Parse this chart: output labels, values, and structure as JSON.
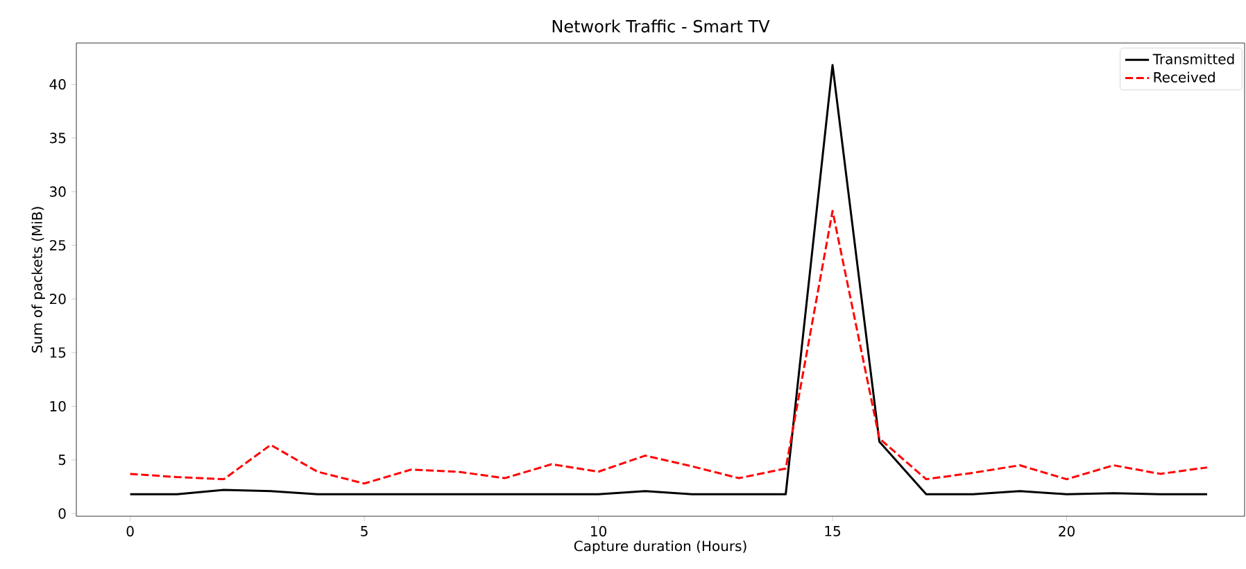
{
  "chart_data": {
    "type": "line",
    "title": "Network Traffic - Smart TV",
    "xlabel": "Capture duration (Hours)",
    "ylabel": "Sum of packets (MiB)",
    "x": [
      0,
      1,
      2,
      3,
      4,
      5,
      6,
      7,
      8,
      9,
      10,
      11,
      12,
      13,
      14,
      15,
      16,
      17,
      18,
      19,
      20,
      21,
      22,
      23
    ],
    "series": [
      {
        "name": "Transmitted",
        "color": "#000000",
        "line_style": "solid",
        "values": [
          1.8,
          1.8,
          2.2,
          2.1,
          1.8,
          1.8,
          1.8,
          1.8,
          1.8,
          1.8,
          1.8,
          2.1,
          1.8,
          1.8,
          1.8,
          41.8,
          6.7,
          1.8,
          1.8,
          2.1,
          1.8,
          1.9,
          1.8,
          1.8
        ]
      },
      {
        "name": "Received",
        "color": "#ff0000",
        "line_style": "dashed",
        "values": [
          3.7,
          3.4,
          3.2,
          6.4,
          3.9,
          2.8,
          4.1,
          3.9,
          3.3,
          4.6,
          3.9,
          5.4,
          4.4,
          3.3,
          4.2,
          28.2,
          7.0,
          3.2,
          3.8,
          4.5,
          3.2,
          4.5,
          3.7,
          4.3
        ]
      }
    ],
    "xlim": [
      -1.15,
      23.8
    ],
    "ylim": [
      -0.25,
      43.85
    ],
    "xticks": [
      0,
      5,
      10,
      15,
      20
    ],
    "yticks": [
      0,
      5,
      10,
      15,
      20,
      25,
      30,
      35,
      40
    ],
    "legend": "top right",
    "grid": false,
    "marker": "none"
  }
}
